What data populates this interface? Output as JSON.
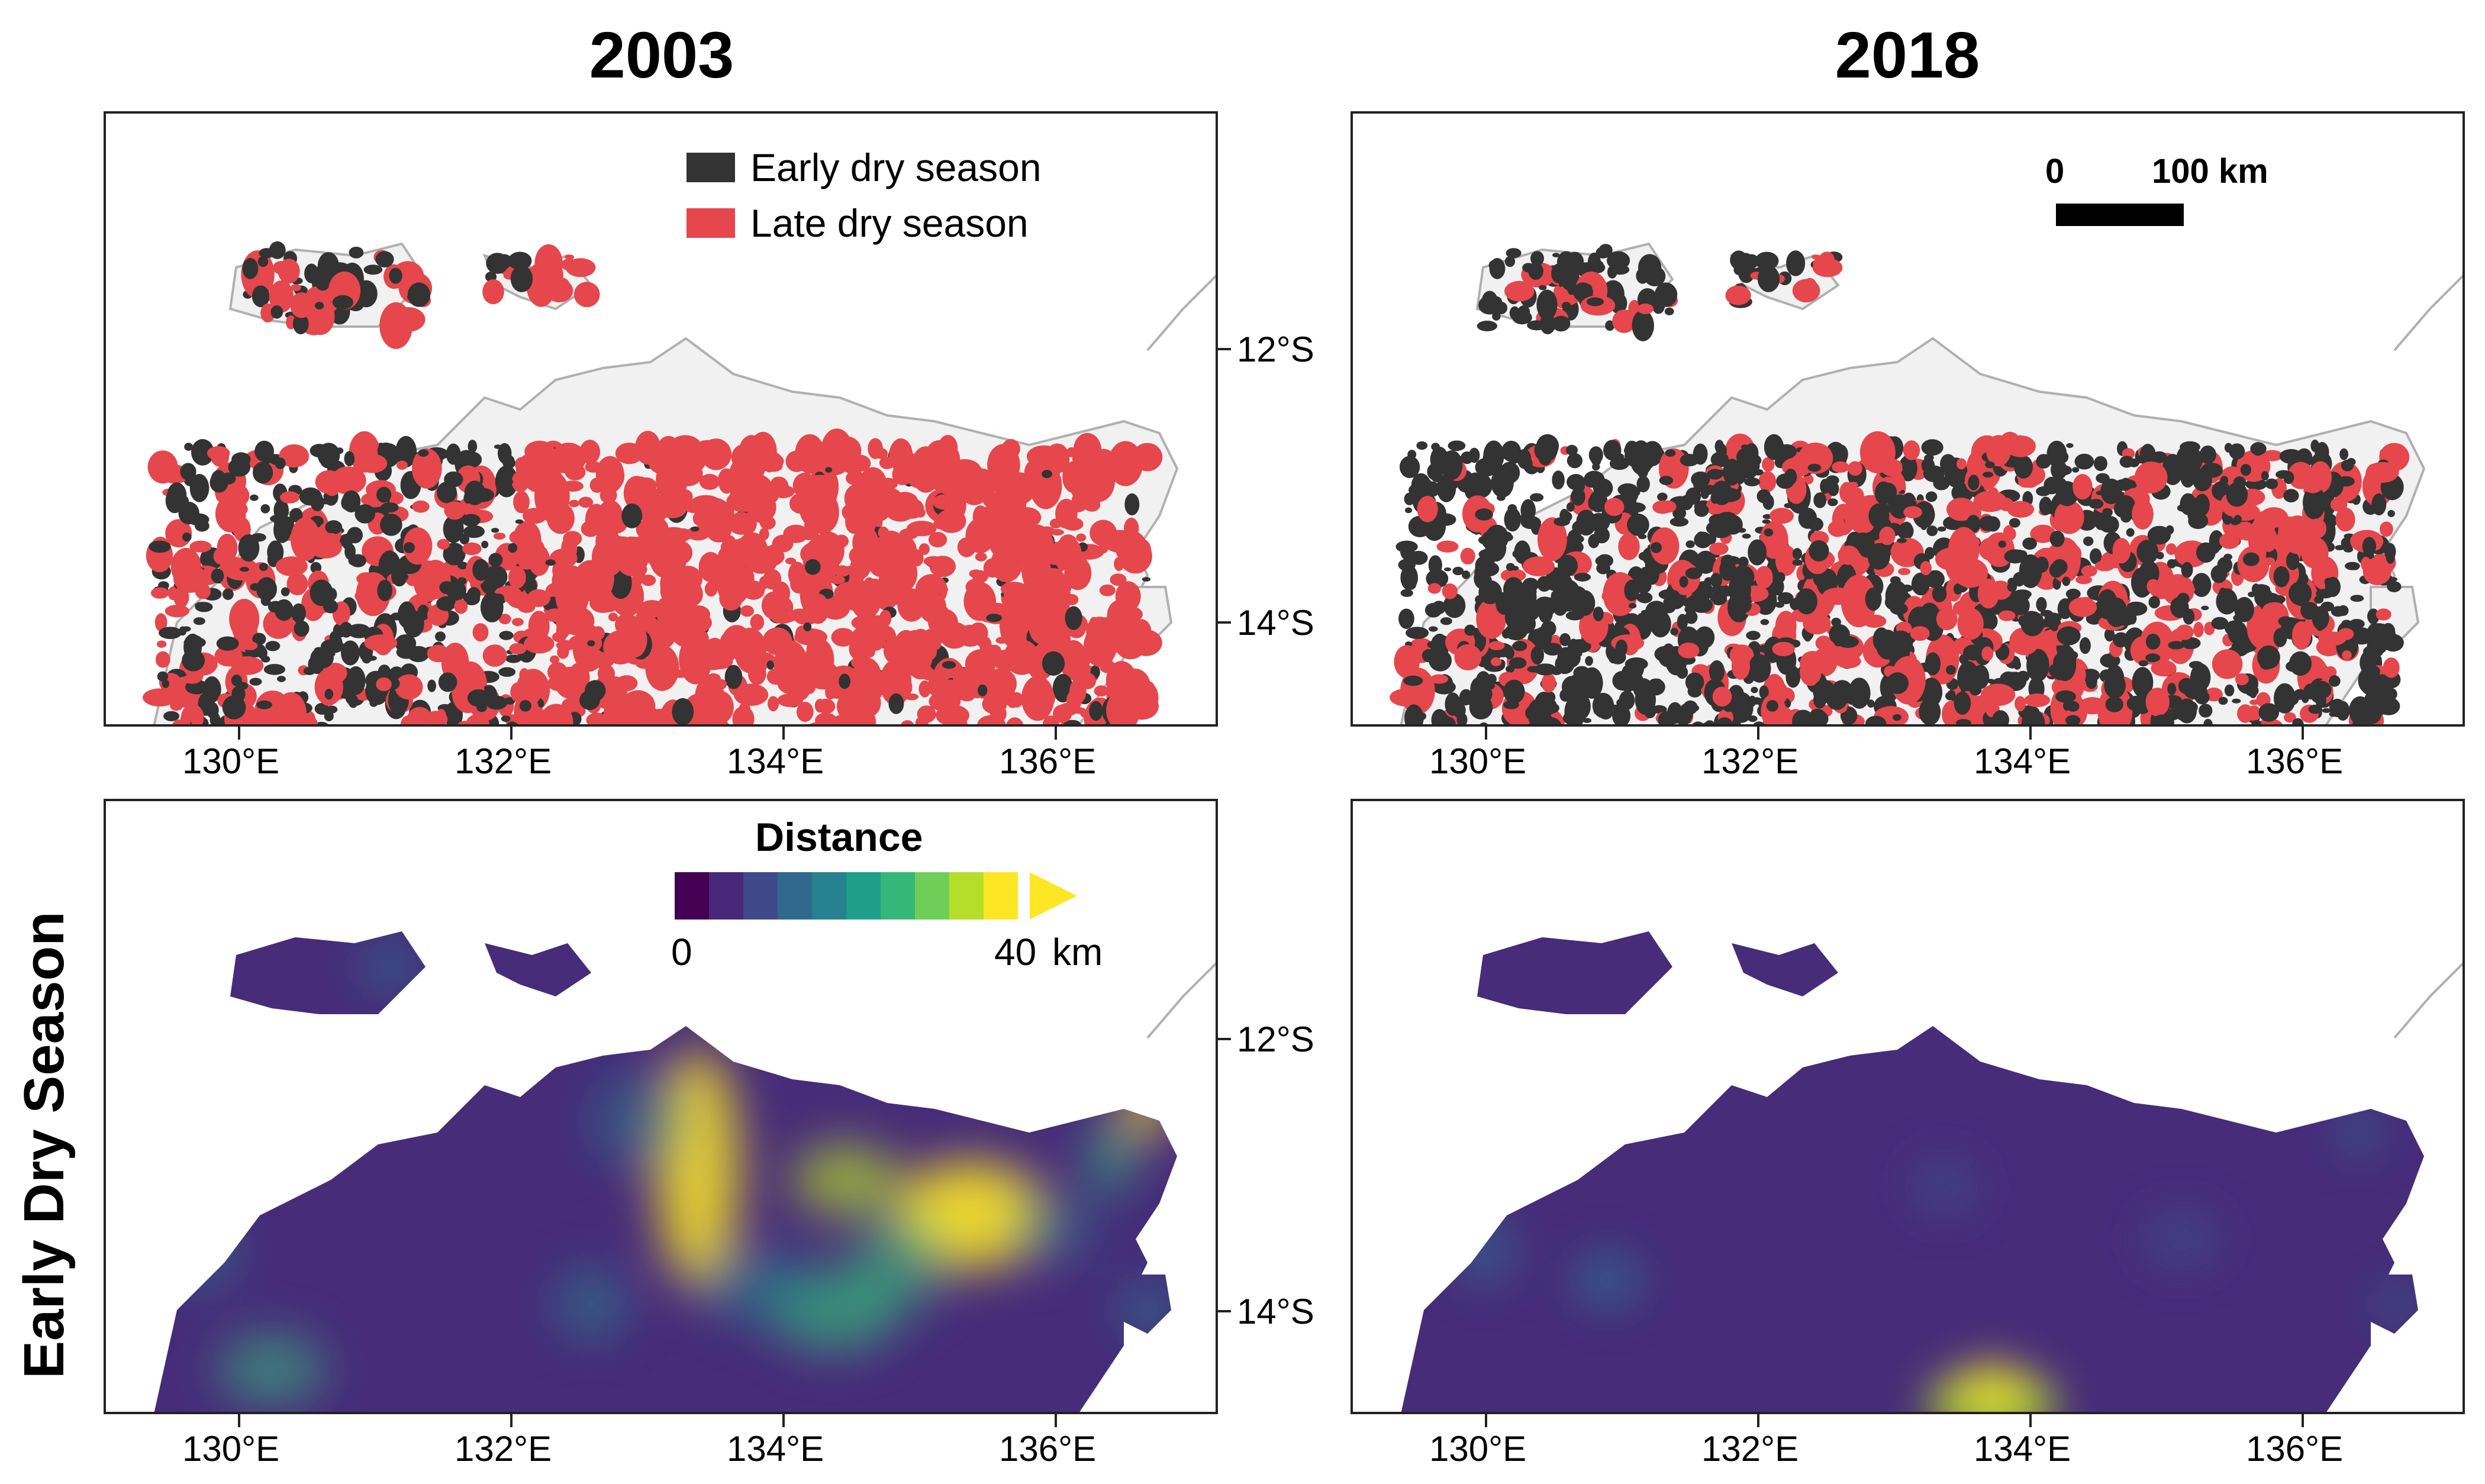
{
  "columns": {
    "left_title": "2003",
    "right_title": "2018"
  },
  "rows": {
    "bottom_title": "Early Dry Season"
  },
  "legend": {
    "early_label": "Early dry season",
    "late_label": "Late dry season",
    "early_color": "#333333",
    "late_color": "#e5474c"
  },
  "scale_bar": {
    "start_label": "0",
    "end_label": "100 km"
  },
  "colorbar": {
    "title": "Distance",
    "min_label": "0",
    "max_label": "40",
    "unit_label": "km",
    "colors": [
      "#440154",
      "#482878",
      "#3e4989",
      "#31688e",
      "#26828e",
      "#1f9e89",
      "#35b779",
      "#6ece58",
      "#b5de2b",
      "#fde725"
    ]
  },
  "axes": {
    "x_ticks": [
      "130°E",
      "132°E",
      "134°E",
      "136°E"
    ],
    "y_ticks": [
      "12°S",
      "14°S"
    ]
  },
  "colors": {
    "land": "#f1f1f1",
    "coast": "#b0b0b0",
    "distance_low": "#472c7a",
    "distance_high": "#fde725"
  }
}
